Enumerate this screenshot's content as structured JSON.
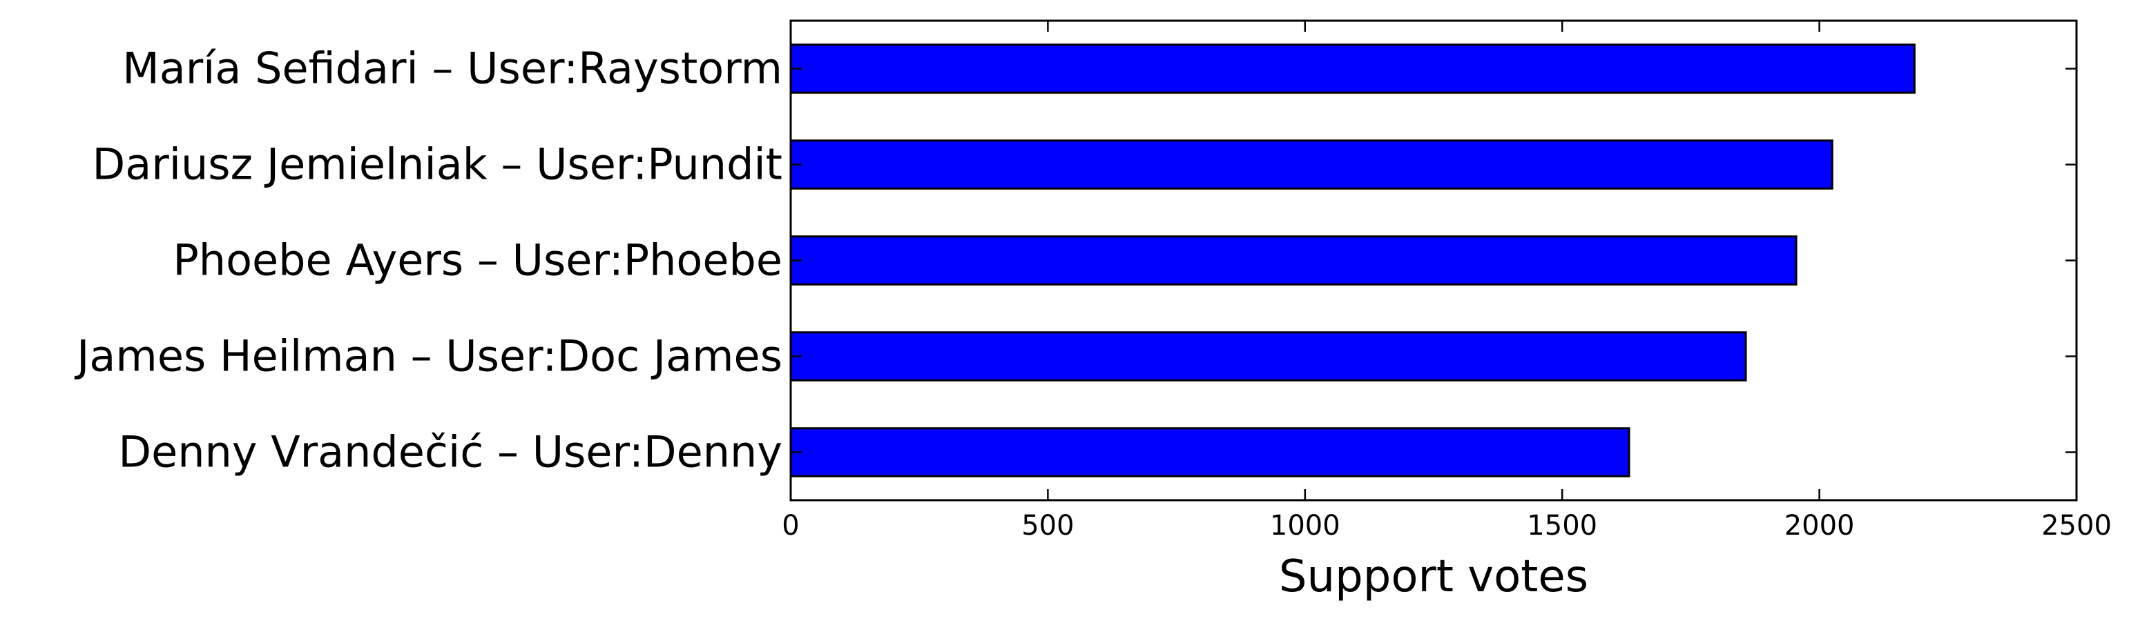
{
  "chart_data": {
    "type": "bar",
    "orientation": "horizontal",
    "categories": [
      "María Sefidari – User:Raystorm",
      "Dariusz Jemielniak – User:Pundit",
      "Phoebe Ayers – User:Phoebe",
      "James Heilman – User:Doc James",
      "Denny Vrandečić – User:Denny"
    ],
    "values": [
      2185,
      2025,
      1955,
      1857,
      1630
    ],
    "xlabel": "Support votes",
    "ylabel": "",
    "title": "",
    "xlim": [
      0,
      2500
    ],
    "xticks": [
      0,
      500,
      1000,
      1500,
      2000,
      2500
    ],
    "grid": false,
    "bar_color": "#0000ff"
  }
}
